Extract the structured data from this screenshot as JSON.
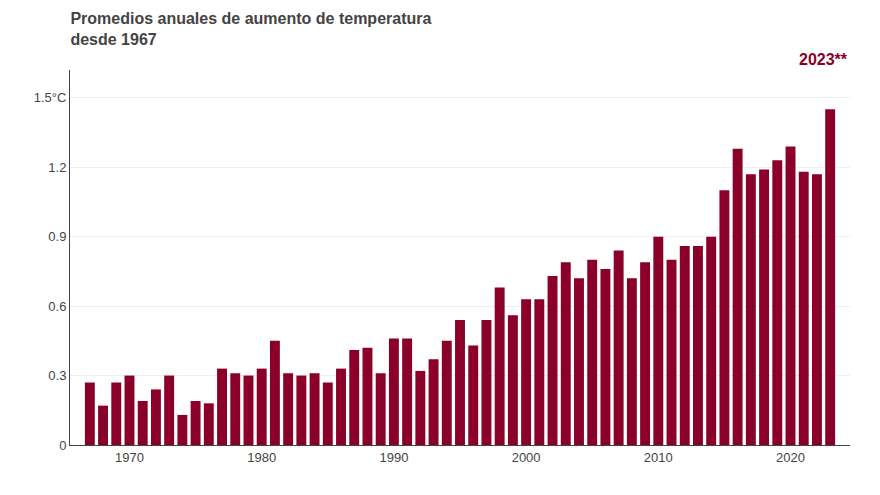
{
  "chart_data": {
    "type": "bar",
    "title": "Promedios anuales de aumento de temperatura\ndesde 1967",
    "annotations": [
      "2023**"
    ],
    "x": [
      1967,
      1968,
      1969,
      1970,
      1971,
      1972,
      1973,
      1974,
      1975,
      1976,
      1977,
      1978,
      1979,
      1980,
      1981,
      1982,
      1983,
      1984,
      1985,
      1986,
      1987,
      1988,
      1989,
      1990,
      1991,
      1992,
      1993,
      1994,
      1995,
      1996,
      1997,
      1998,
      1999,
      2000,
      2001,
      2002,
      2003,
      2004,
      2005,
      2006,
      2007,
      2008,
      2009,
      2010,
      2011,
      2012,
      2013,
      2014,
      2015,
      2016,
      2017,
      2018,
      2019,
      2020,
      2021,
      2022,
      2023
    ],
    "values": [
      0.27,
      0.17,
      0.27,
      0.3,
      0.19,
      0.24,
      0.3,
      0.13,
      0.19,
      0.18,
      0.33,
      0.31,
      0.3,
      0.33,
      0.45,
      0.31,
      0.3,
      0.31,
      0.27,
      0.33,
      0.41,
      0.42,
      0.31,
      0.46,
      0.46,
      0.32,
      0.37,
      0.45,
      0.54,
      0.43,
      0.54,
      0.68,
      0.56,
      0.63,
      0.63,
      0.73,
      0.79,
      0.72,
      0.8,
      0.76,
      0.84,
      0.72,
      0.79,
      0.9,
      0.8,
      0.86,
      0.86,
      0.9,
      1.1,
      1.28,
      1.17,
      1.19,
      1.23,
      1.29,
      1.18,
      1.17,
      1.45
    ],
    "color": "#8b0028",
    "xlim": [
      1965.5,
      2024.5
    ],
    "xticks": [
      1970,
      1980,
      1990,
      2000,
      2010,
      2020
    ],
    "ylim": [
      0,
      1.62
    ],
    "yticks": [
      0,
      0.3,
      0.6,
      0.9,
      1.2,
      {
        "value": 1.5,
        "label": "1.5°C"
      }
    ],
    "grid": true
  }
}
